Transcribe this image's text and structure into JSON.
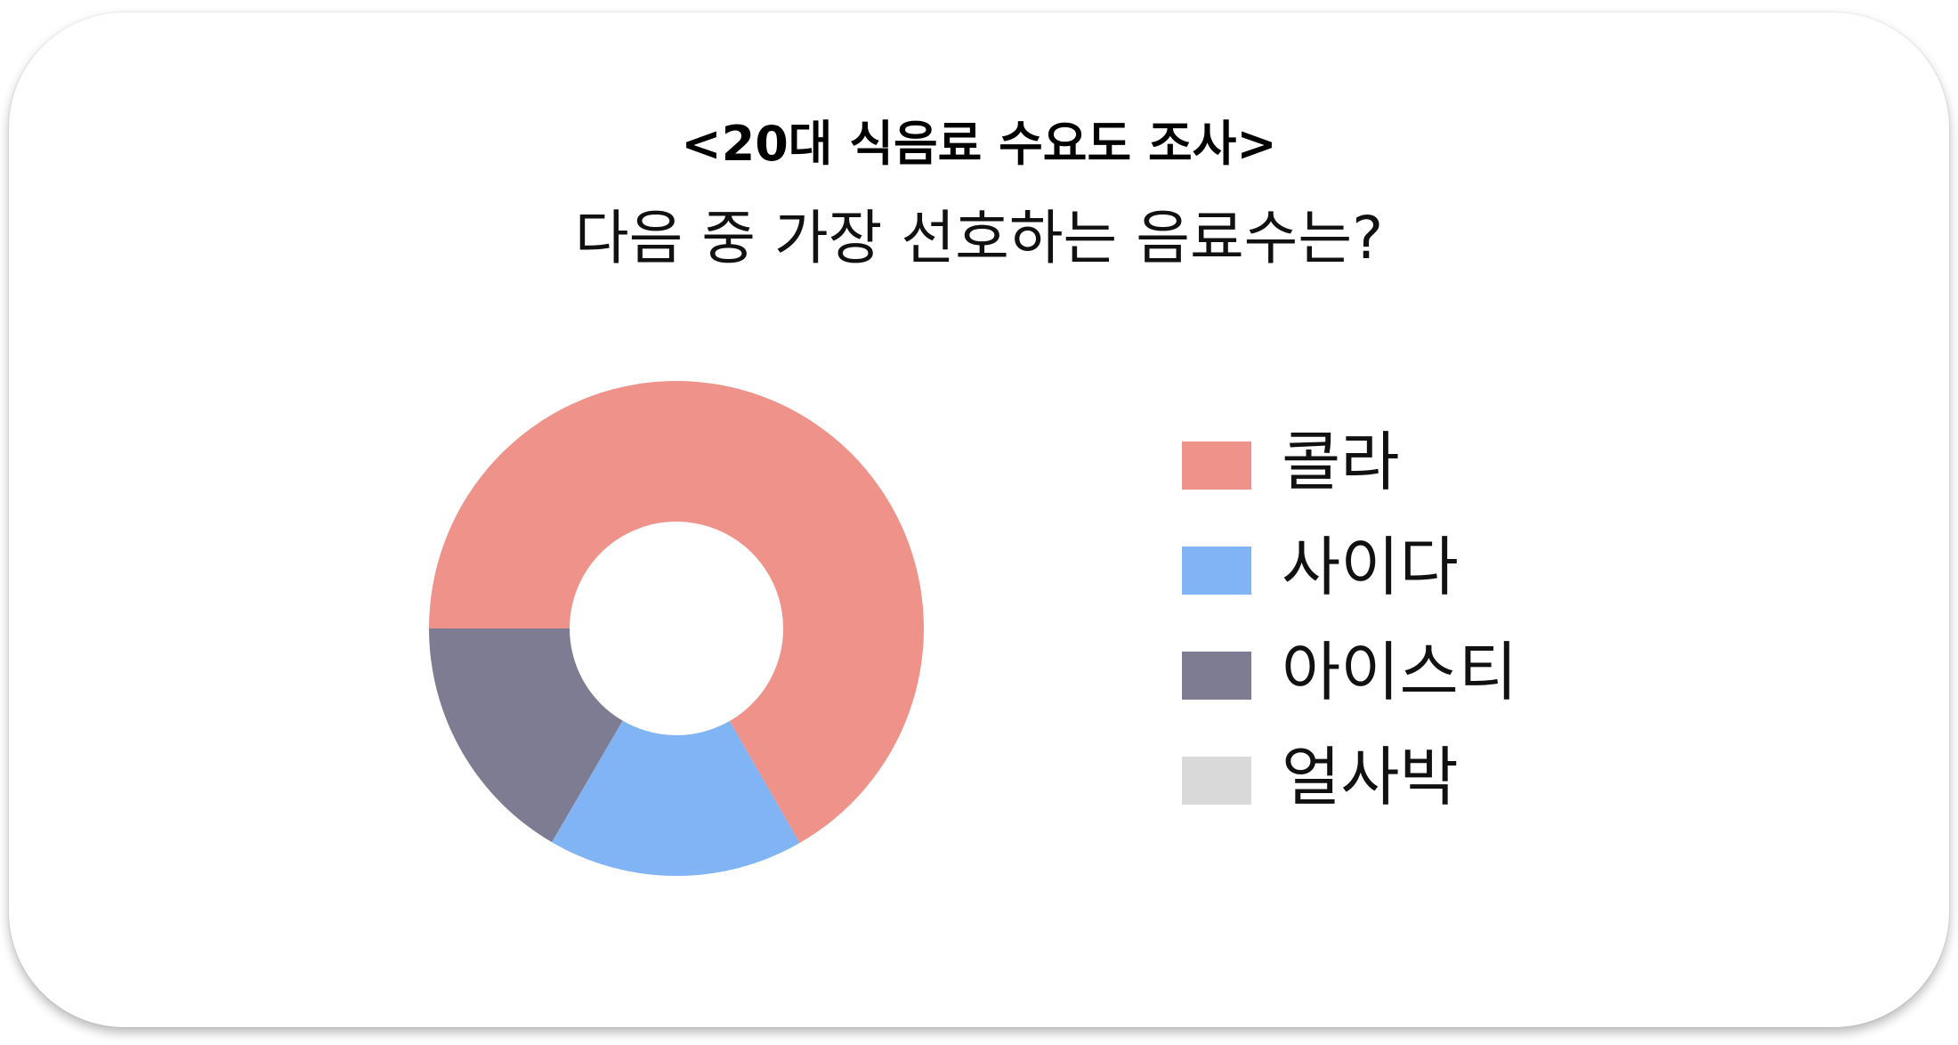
{
  "chart_data": {
    "type": "pie",
    "subtype": "donut",
    "title": "<20대 식음료 수요도 조사>",
    "subtitle": "다음 중 가장 선호하는 음료수는?",
    "categories": [
      "콜라",
      "사이다",
      "아이스티",
      "얼사박"
    ],
    "values": [
      66.7,
      16.7,
      16.6,
      0
    ],
    "colors": [
      "#EE928A",
      "#80B4F4",
      "#7D7C92",
      "#D9D9D9"
    ],
    "legend_position": "right",
    "start_angle_deg": 180,
    "direction": "clockwise"
  }
}
